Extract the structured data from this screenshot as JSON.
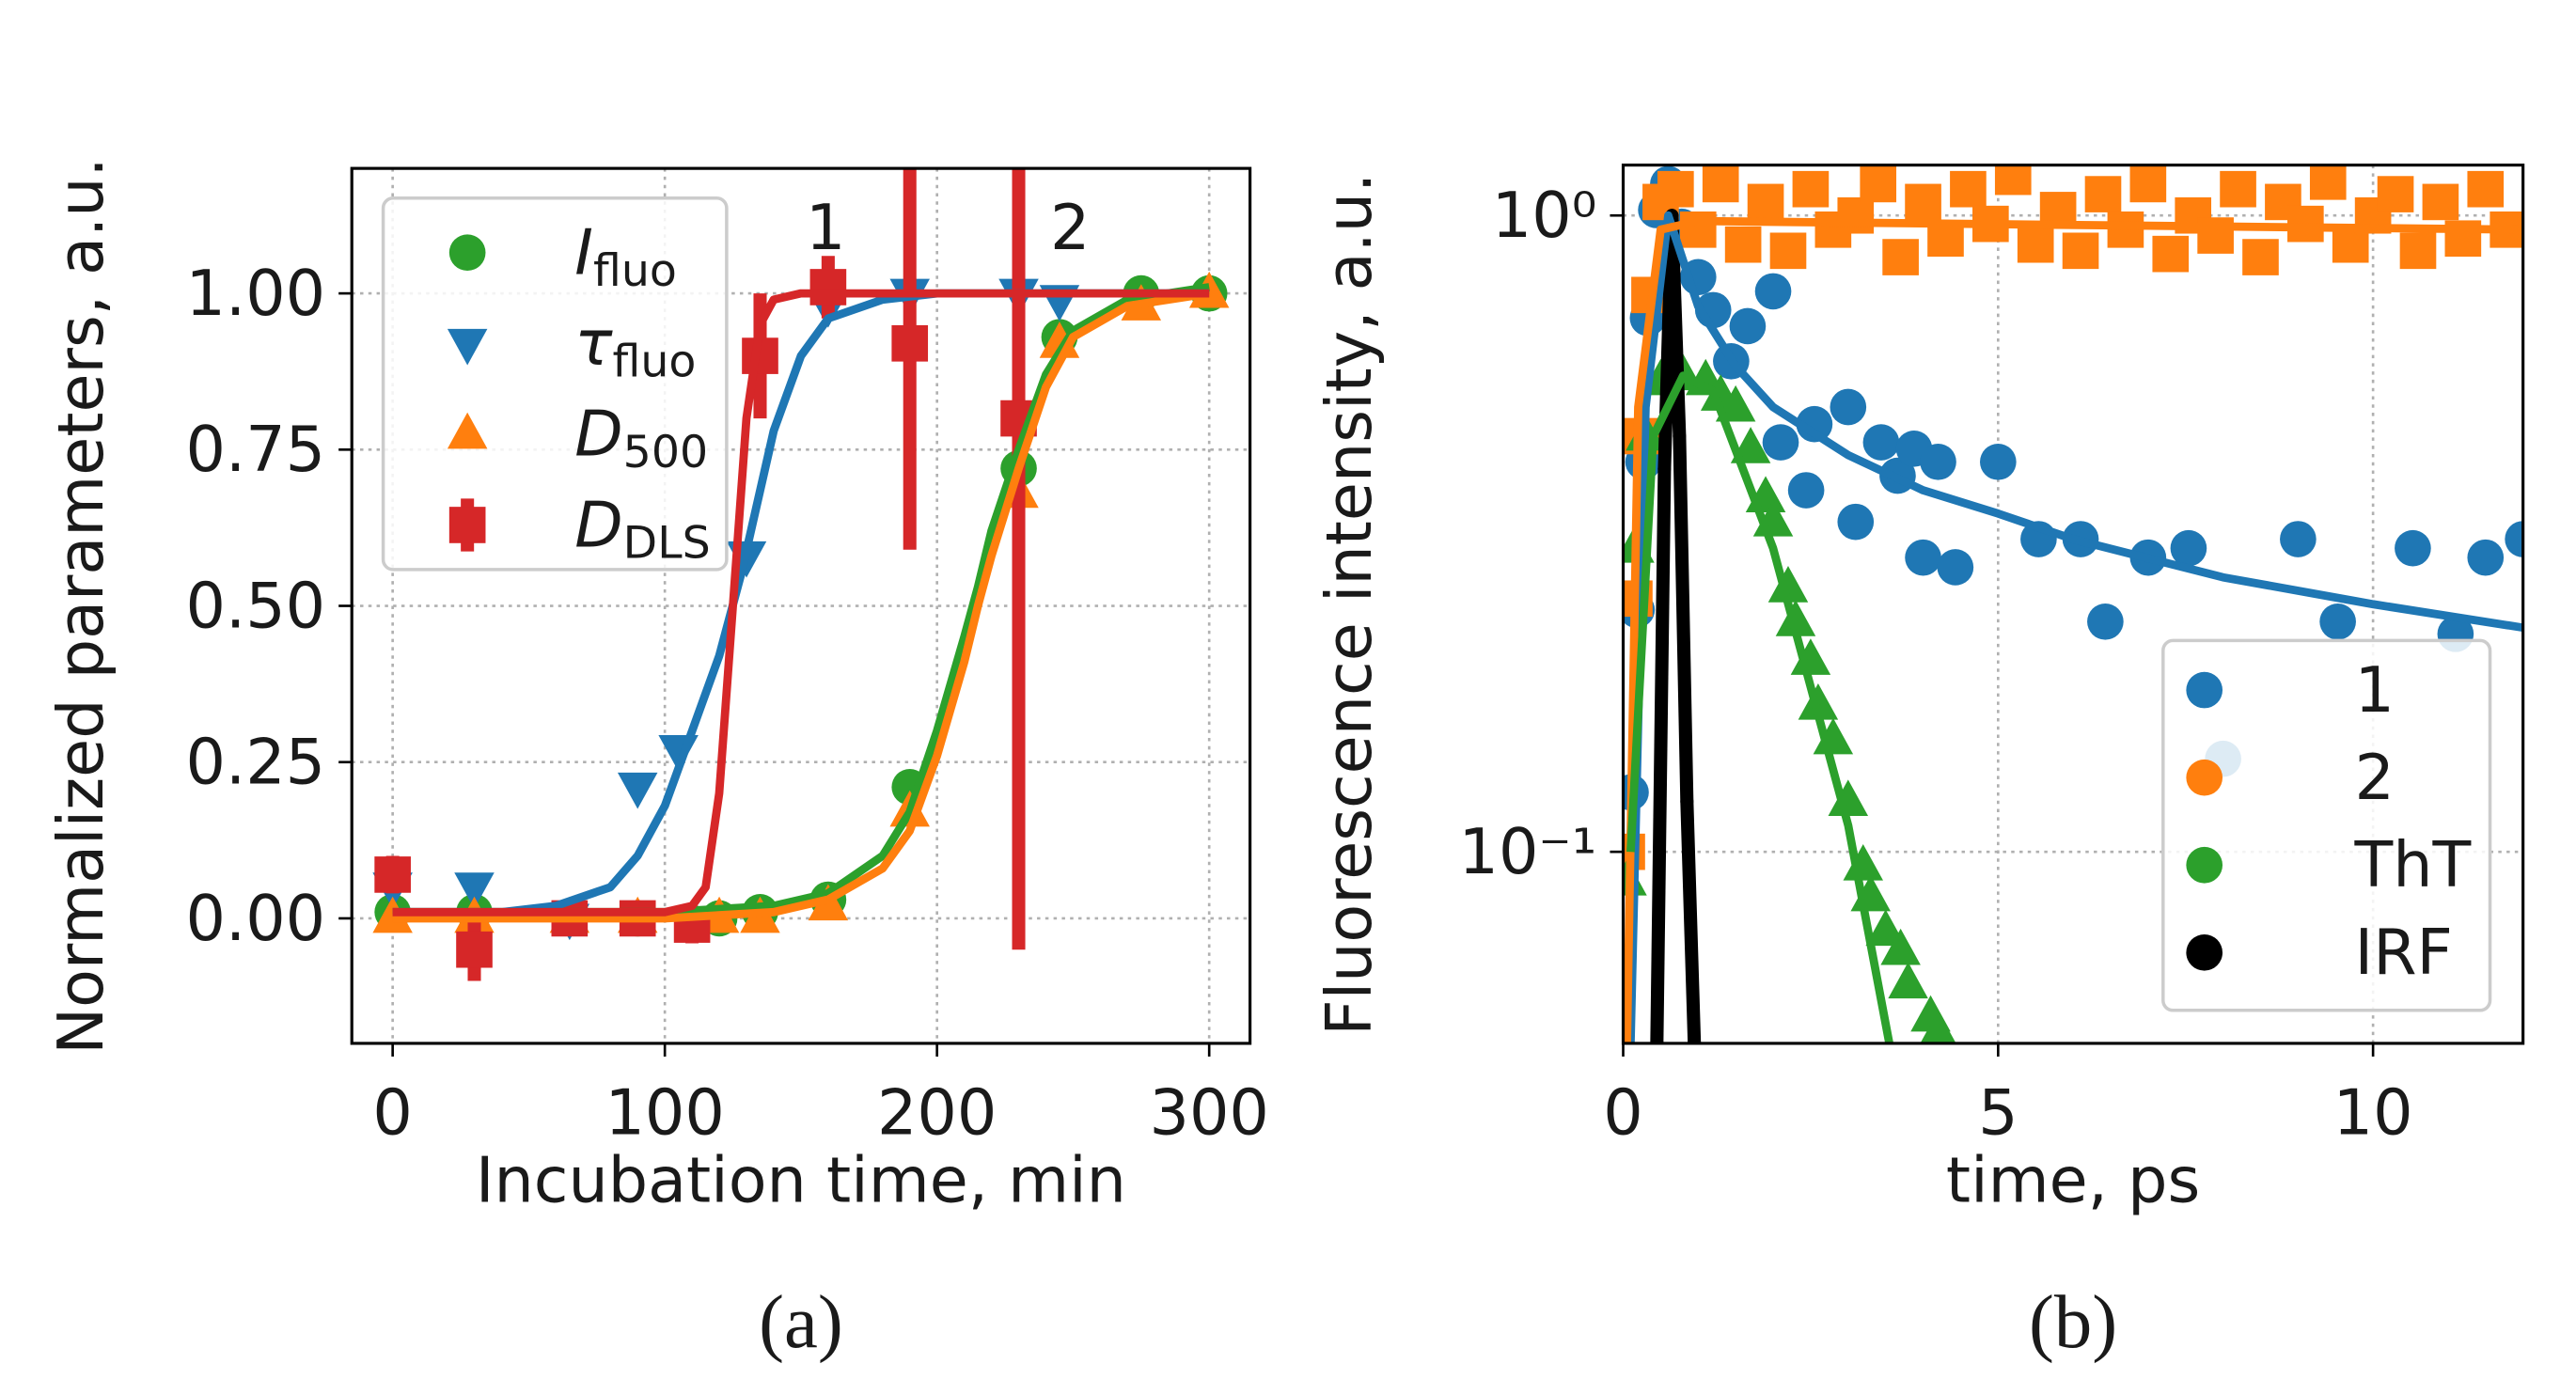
{
  "chart_data": [
    {
      "type": "scatter",
      "caption": "(a)",
      "xlabel": "Incubation time, min",
      "ylabel": "Normalized parameters, a.u.",
      "xlim": [
        -15,
        315
      ],
      "ylim": [
        -0.2,
        1.2
      ],
      "xticks": [
        0,
        100,
        200,
        300
      ],
      "yticks": [
        {
          "value": 0,
          "label": "0.00"
        },
        0.25,
        {
          "value": 0.5,
          "label": "0.50"
        },
        0.75,
        {
          "value": 1,
          "label": "1.00"
        }
      ],
      "grid": true,
      "legend": "upper left",
      "annotations": [
        "1",
        "2"
      ],
      "series": [
        {
          "name": "I",
          "name_sub": "fluo",
          "color": "#2ca02c",
          "marker": "circle",
          "x": [
            0,
            30,
            65,
            90,
            120,
            135,
            160,
            190,
            230,
            245,
            275,
            300
          ],
          "values": [
            0.01,
            0.01,
            0.0,
            0.0,
            0.0,
            0.01,
            0.03,
            0.21,
            0.72,
            0.93,
            1.0,
            1.0
          ],
          "fit": {
            "x": [
              0,
              100,
              140,
              160,
              180,
              190,
              200,
              210,
              215,
              220,
              230,
              240,
              250,
              270,
              300
            ],
            "values": [
              0.01,
              0.01,
              0.02,
              0.04,
              0.1,
              0.17,
              0.3,
              0.45,
              0.53,
              0.62,
              0.75,
              0.87,
              0.94,
              0.99,
              1.01
            ]
          }
        },
        {
          "name": "τ",
          "name_sub": "fluo",
          "color": "#1f77b4",
          "marker": "triangle-down",
          "x": [
            0,
            30,
            65,
            90,
            105,
            130,
            160,
            190,
            230,
            245
          ],
          "values": [
            0.05,
            0.05,
            0.0,
            0.21,
            0.27,
            0.58,
            0.98,
            1.0,
            1.0,
            0.99
          ],
          "fit": {
            "x": [
              0,
              40,
              60,
              80,
              90,
              100,
              110,
              120,
              128,
              140,
              150,
              160,
              180,
              200,
              240,
              300
            ],
            "values": [
              0.01,
              0.01,
              0.02,
              0.05,
              0.1,
              0.18,
              0.3,
              0.42,
              0.55,
              0.78,
              0.9,
              0.96,
              0.99,
              1.0,
              1.0,
              1.0
            ]
          }
        },
        {
          "name": "D",
          "name_sub": "500",
          "color": "#ff7f0e",
          "marker": "triangle-up",
          "x": [
            0,
            30,
            65,
            90,
            120,
            135,
            160,
            190,
            230,
            245,
            275,
            300
          ],
          "values": [
            0.0,
            0.0,
            0.0,
            0.0,
            0.0,
            0.0,
            0.02,
            0.17,
            0.68,
            0.92,
            0.98,
            1.0
          ],
          "fit": {
            "x": [
              0,
              100,
              140,
              160,
              180,
              190,
              200,
              210,
              215,
              220,
              230,
              240,
              250,
              270,
              300
            ],
            "values": [
              0.0,
              0.0,
              0.01,
              0.03,
              0.08,
              0.14,
              0.26,
              0.41,
              0.5,
              0.58,
              0.72,
              0.85,
              0.93,
              0.98,
              1.0
            ]
          }
        },
        {
          "name": "D",
          "name_sub": "DLS",
          "color": "#d62728",
          "marker": "square",
          "x": [
            0,
            30,
            65,
            90,
            110,
            135,
            160,
            190,
            230
          ],
          "values": [
            0.07,
            -0.05,
            0.0,
            0.0,
            -0.01,
            0.9,
            1.01,
            0.92,
            0.8
          ],
          "errors": [
            0.03,
            0.05,
            0.01,
            0.01,
            0.03,
            0.1,
            0.05,
            0.33,
            0.85
          ],
          "fit": {
            "x": [
              0,
              100,
              110,
              115,
              120,
              125,
              130,
              135,
              140,
              150,
              300
            ],
            "values": [
              0.01,
              0.01,
              0.02,
              0.05,
              0.2,
              0.5,
              0.8,
              0.95,
              0.99,
              1.0,
              1.0
            ]
          }
        }
      ]
    },
    {
      "type": "scatter",
      "caption": "(b)",
      "xlabel": "time, ps",
      "ylabel": "Fluorescence intensity, a.u.",
      "xlim": [
        0,
        12
      ],
      "ylim": [
        0.05,
        1.2
      ],
      "ylog": true,
      "xticks": [
        0,
        5,
        10
      ],
      "yticks": [
        {
          "value": 0.1,
          "label": "10⁻¹"
        },
        {
          "value": 1,
          "label": "10⁰"
        }
      ],
      "grid": true,
      "legend": "lower right",
      "legend_marker": "circle",
      "series": [
        {
          "name": "1",
          "color": "#1f77b4",
          "marker": "circle",
          "x": [
            0.1,
            0.18,
            0.27,
            0.33,
            0.44,
            0.6,
            0.78,
            1.0,
            1.2,
            1.44,
            1.66,
            2.0,
            2.1,
            2.44,
            2.55,
            3.0,
            3.1,
            3.44,
            3.66,
            3.88,
            4.0,
            4.2,
            4.43,
            5.0,
            5.54,
            6.1,
            6.43,
            7.0,
            7.54,
            8.0,
            9.0,
            9.53,
            10.53,
            11.1,
            11.5,
            12.0
          ],
          "values": [
            0.124,
            0.24,
            0.41,
            0.69,
            1.02,
            1.12,
            0.96,
            0.8,
            0.71,
            0.59,
            0.67,
            0.76,
            0.44,
            0.37,
            0.47,
            0.5,
            0.33,
            0.44,
            0.39,
            0.43,
            0.29,
            0.41,
            0.28,
            0.41,
            0.31,
            0.31,
            0.23,
            0.29,
            0.3,
            0.14,
            0.31,
            0.23,
            0.3,
            0.22,
            0.29,
            0.31
          ],
          "fit": {
            "x": [
              0.1,
              0.3,
              0.6,
              1,
              1.5,
              2,
              3,
              4,
              5,
              6,
              8,
              10,
              12
            ],
            "values": [
              0.05,
              0.5,
              1.0,
              0.72,
              0.58,
              0.5,
              0.42,
              0.37,
              0.34,
              0.31,
              0.27,
              0.245,
              0.225
            ]
          }
        },
        {
          "name": "2",
          "color": "#ff7f0e",
          "marker": "square",
          "x": [
            0.05,
            0.15,
            0.25,
            0.35,
            0.5,
            0.7,
            1.0,
            1.3,
            1.6,
            1.9,
            2.2,
            2.5,
            2.8,
            3.1,
            3.4,
            3.7,
            4.0,
            4.3,
            4.6,
            4.9,
            5.2,
            5.5,
            5.8,
            6.1,
            6.4,
            6.7,
            7.0,
            7.3,
            7.6,
            7.9,
            8.2,
            8.5,
            8.8,
            9.1,
            9.4,
            9.7,
            10.0,
            10.3,
            10.6,
            10.9,
            11.2,
            11.5,
            11.8
          ],
          "values": [
            0.1,
            0.25,
            0.45,
            0.75,
            1.05,
            1.1,
            0.95,
            1.12,
            0.9,
            1.05,
            0.88,
            1.1,
            0.95,
            1.0,
            1.12,
            0.86,
            1.05,
            0.92,
            1.1,
            0.97,
            1.15,
            0.9,
            1.02,
            0.88,
            1.08,
            0.95,
            1.12,
            0.87,
            1.0,
            0.93,
            1.1,
            0.86,
            1.05,
            0.97,
            1.13,
            0.9,
            1.0,
            1.08,
            0.88,
            1.05,
            0.92,
            1.1,
            0.95
          ],
          "fit": {
            "x": [
              0.05,
              0.2,
              0.5,
              1,
              12
            ],
            "values": [
              0.05,
              0.5,
              0.95,
              0.98,
              0.95
            ]
          }
        },
        {
          "name": "ThT",
          "color": "#2ca02c",
          "marker": "triangle-up",
          "x": [
            0.05,
            0.15,
            0.3,
            0.5,
            0.8,
            1.1,
            1.3,
            1.5,
            1.7,
            1.9,
            2.0,
            2.2,
            2.3,
            2.5,
            2.6,
            2.8,
            3.0,
            3.2,
            3.3,
            3.5,
            3.7,
            3.8,
            4.1,
            4.2
          ],
          "values": [
            0.09,
            0.3,
            0.45,
            0.55,
            0.56,
            0.55,
            0.52,
            0.5,
            0.43,
            0.36,
            0.33,
            0.26,
            0.23,
            0.2,
            0.17,
            0.15,
            0.12,
            0.095,
            0.085,
            0.075,
            0.07,
            0.062,
            0.055,
            0.052
          ],
          "fit": {
            "x": [
              0.1,
              0.4,
              0.8,
              1.2,
              2.0,
              3.0,
              3.55
            ],
            "values": [
              0.1,
              0.45,
              0.56,
              0.53,
              0.3,
              0.11,
              0.05
            ]
          }
        },
        {
          "name": "IRF",
          "color": "#000000",
          "marker": "line",
          "x": [
            0.45,
            0.55,
            0.65,
            0.75,
            0.85,
            0.95
          ],
          "values": [
            0.05,
            0.4,
            1.0,
            0.45,
            0.12,
            0.05
          ]
        }
      ]
    }
  ]
}
